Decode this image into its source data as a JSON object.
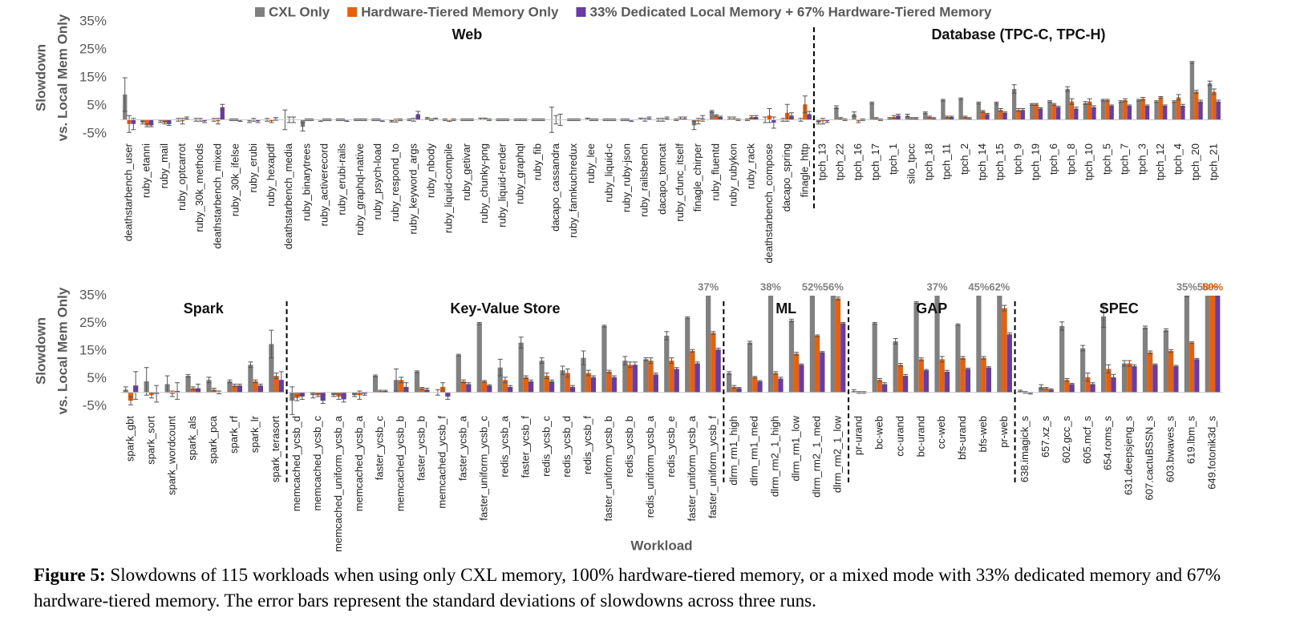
{
  "chart_data": [
    {
      "type": "bar",
      "ylabel": [
        "Slowdown",
        "vs. Local Mem Only"
      ],
      "ylim": [
        -5,
        35
      ],
      "yticks": [
        {
          "value": -5,
          "label": "-5%"
        },
        {
          "value": 5,
          "label": "5%"
        },
        {
          "value": 15,
          "label": "15%"
        },
        {
          "value": 25,
          "label": "25%"
        },
        {
          "value": 35,
          "label": "35%"
        }
      ],
      "groups": [
        {
          "name": "Web",
          "categories": [
            "deathstarbench_user",
            "ruby_etanni",
            "ruby_mail",
            "ruby_optcarrot",
            "ruby_30k_methods",
            "deathstarbench_mixed",
            "ruby_30k_ifelse",
            "ruby_erubi",
            "ruby_hexapdf",
            "deathstarbench_media",
            "ruby_binarytrees",
            "ruby_activerecord",
            "ruby_erubi-rails",
            "ruby_graphql-native",
            "ruby_psych-load",
            "ruby_respond_to",
            "ruby_keyword_args",
            "ruby_nbody",
            "ruby_liquid-compile",
            "ruby_getivar",
            "ruby_chunky-png",
            "ruby_liquid-render",
            "ruby_graphql",
            "ruby_fib",
            "dacapo_cassandra",
            "ruby_fannkuchredux",
            "ruby_lee",
            "ruby_liquid-c",
            "ruby_ruby-json",
            "ruby_railsbench",
            "dacapo_tomcat",
            "ruby_cfunc_itself",
            "finagle_chirper",
            "ruby_fluentd",
            "ruby_rubykon",
            "ruby_rack",
            "deathstarbench_compose",
            "dacapo_spring",
            "finagle_http"
          ]
        },
        {
          "name": "Database (TPC-C, TPC-H)",
          "categories": [
            "tpch_13",
            "tpch_22",
            "tpch_16",
            "tpch_17",
            "tpch_1",
            "silo_tpcc",
            "tpch_18",
            "tpch_11",
            "tpch_2",
            "tpch_14",
            "tpch_15",
            "tpch_9",
            "tpch_19",
            "tpch_6",
            "tpch_8",
            "tpch_10",
            "tpch_5",
            "tpch_7",
            "tpch_3",
            "tpch_12",
            "tpch_4",
            "tpch_20",
            "tpch_21"
          ]
        }
      ],
      "series": [
        {
          "name": "CXL Only",
          "color": "#808080",
          "values": [
            9,
            -1,
            -0.5,
            0,
            0,
            0,
            0,
            -0.5,
            0,
            0,
            -2.5,
            -0.3,
            0,
            0,
            0,
            -0.5,
            0,
            0.5,
            0,
            0,
            0.3,
            0,
            0,
            0,
            0,
            0,
            0.3,
            0,
            0,
            0.3,
            0,
            0,
            -2,
            3,
            0.5,
            0,
            0,
            0,
            0,
            -1,
            4.5,
            2,
            6,
            0.5,
            1.5,
            2.5,
            7,
            7.5,
            6,
            6,
            11,
            5.5,
            6.5,
            11,
            6,
            7,
            6.5,
            7,
            6.5,
            6.5,
            20.5,
            13
          ],
          "errors": [
            6,
            0.5,
            0.5,
            0.5,
            0.5,
            0.5,
            0.3,
            0.5,
            0.5,
            3.5,
            1.5,
            0.3,
            0.3,
            0.3,
            0.3,
            0.3,
            0.3,
            0.3,
            0.3,
            0.3,
            0.3,
            0.3,
            0.3,
            0.3,
            4.5,
            0.3,
            0.3,
            0.3,
            0.3,
            0.3,
            0.5,
            0.3,
            1.5,
            0.3,
            0.5,
            0.3,
            1,
            0.5,
            0.5,
            0.5,
            0.5,
            0.8,
            0.3,
            0.3,
            0.5,
            0.3,
            0.3,
            0.3,
            0.3,
            0.3,
            1.5,
            0.3,
            0.3,
            0.8,
            0.5,
            0.3,
            0.3,
            0.3,
            0.3,
            0.3,
            0.3,
            0.8
          ]
        },
        {
          "name": "Hardware-Tiered Memory Only",
          "color": "#e8600a",
          "values": [
            -1.5,
            -2,
            -1,
            -0.5,
            0,
            -0.5,
            0,
            0,
            -0.5,
            0,
            0,
            0,
            0,
            0,
            0,
            -0.3,
            0,
            0,
            -0.3,
            0,
            0.3,
            0,
            0,
            0,
            0,
            0,
            0,
            0,
            0,
            0,
            0,
            0.5,
            -0.5,
            1.5,
            0.5,
            1,
            1.5,
            2.5,
            5.5,
            -0.5,
            0.5,
            -0.5,
            0.5,
            1,
            0.5,
            1,
            1,
            1,
            3,
            3.5,
            3.5,
            5.5,
            5.5,
            6.5,
            6.5,
            7,
            7,
            7.5,
            8,
            8,
            10,
            10
          ],
          "errors": [
            3,
            0.5,
            0.5,
            1,
            0.5,
            1,
            0.3,
            0.5,
            0.5,
            1,
            0.3,
            0.3,
            0.3,
            0.3,
            0.3,
            0.5,
            0.5,
            0.3,
            0.3,
            0.3,
            0.3,
            0.3,
            0.3,
            0.3,
            1.5,
            0.3,
            0.3,
            0.3,
            0.3,
            0.5,
            0.5,
            0.5,
            1,
            0.3,
            0.5,
            0.5,
            2.5,
            3,
            3,
            1,
            0.3,
            0.5,
            0.3,
            0.5,
            0.3,
            0.3,
            0.3,
            0.3,
            0.3,
            0.5,
            0.5,
            0.3,
            0.3,
            1,
            1,
            0.3,
            0.5,
            0.5,
            0.3,
            1,
            0.5,
            1
          ]
        },
        {
          "name": "33% Dedicated Local Memory + 67% Hardware-Tiered Memory",
          "color": "#6a3ba3",
          "values": [
            -1.5,
            -2,
            -1.5,
            0.5,
            -0.5,
            4.5,
            -0.3,
            -0.5,
            0.3,
            0,
            0,
            0,
            -0.3,
            0,
            -0.3,
            0,
            2,
            0.3,
            0,
            0,
            0,
            0,
            0,
            0,
            0,
            0,
            0,
            0,
            -0.3,
            0.5,
            0.5,
            0.5,
            0.5,
            1,
            0,
            1,
            -1,
            1.5,
            2,
            -0.5,
            0,
            0,
            0,
            1.5,
            0.5,
            0.5,
            1,
            0.5,
            2,
            2.5,
            3.5,
            4,
            4.5,
            4,
            4.5,
            5,
            5,
            5,
            5,
            5,
            6.5,
            6.5
          ],
          "errors": [
            2,
            0.5,
            0.5,
            0.5,
            0.5,
            1,
            0.3,
            0.5,
            0.5,
            1,
            0.3,
            0.3,
            0.3,
            0.3,
            0.3,
            0.3,
            1,
            0.3,
            0.3,
            0.3,
            0.3,
            0.3,
            0.3,
            0.3,
            2,
            0.3,
            0.3,
            0.3,
            0.3,
            0.5,
            0.5,
            0.5,
            1,
            0.3,
            0.3,
            0.5,
            2,
            1,
            1,
            0.5,
            0.3,
            0.3,
            0.3,
            0.5,
            0.3,
            0.3,
            0.3,
            0.3,
            0.3,
            0.3,
            0.5,
            0.3,
            0.3,
            0.5,
            0.5,
            0.3,
            0.3,
            0.3,
            0.3,
            0.5,
            0.5,
            0.5
          ]
        }
      ]
    },
    {
      "type": "bar",
      "ylabel": [
        "Slowdown",
        "vs. Local Mem Only"
      ],
      "xlabel": "Workload",
      "ylim": [
        -5,
        35
      ],
      "yticks": [
        {
          "value": -5,
          "label": "-5%"
        },
        {
          "value": 5,
          "label": "5%"
        },
        {
          "value": 15,
          "label": "15%"
        },
        {
          "value": 25,
          "label": "25%"
        },
        {
          "value": 35,
          "label": "35%"
        }
      ],
      "groups": [
        {
          "name": "Spark",
          "categories": [
            "spark_gbt",
            "spark_sort",
            "spark_wordcount",
            "spark_als",
            "spark_pca",
            "spark_rf",
            "spark_lr",
            "spark_terasort"
          ]
        },
        {
          "name": "Key-Value Store",
          "categories": [
            "memcached_ycsb_d",
            "memcached_ycsb_c",
            "memcached_uniform_ycsb_a",
            "memcached_ycsb_a",
            "faster_ycsb_c",
            "memcached_ycsb_b",
            "faster_ycsb_b",
            "memcached_ycsb_f",
            "faster_ycsb_a",
            "faster_uniform_ycsb_c",
            "redis_ycsb_a",
            "faster_ycsb_f",
            "redis_ycsb_c",
            "redis_ycsb_d",
            "redis_ycsb_f",
            "faster_uniform_ycsb_b",
            "redis_ycsb_b",
            "redis_uniform_ycsb_a",
            "redis_ycsb_e",
            "faster_uniform_ycsb_a",
            "faster_uniform_ycsb_f"
          ]
        },
        {
          "name": "ML",
          "categories": [
            "dlrm_rm1_high",
            "dlrm_rm1_med",
            "dlrm_rm2_1_high",
            "dlrm_rm1_low",
            "dlrm_rm2_1_med",
            "dlrm_rm2_1_low"
          ]
        },
        {
          "name": "GAP",
          "categories": [
            "pr-urand",
            "bc-web",
            "cc-urand",
            "bc-urand",
            "cc-web",
            "bfs-urand",
            "bfs-web",
            "pr-web"
          ]
        },
        {
          "name": "SPEC",
          "categories": [
            "638.imagick_s",
            "657.xz_s",
            "602.gcc_s",
            "605.mcf_s",
            "654.roms_s",
            "631.deepsjeng_s",
            "607.cactuBSSN_s",
            "603.bwaves_s",
            "619.lbm_s",
            "649.fotonik3d_s"
          ]
        }
      ],
      "series": [
        {
          "color": "#808080",
          "values": [
            1,
            4,
            3,
            6,
            4.5,
            4,
            10,
            17.5,
            -3,
            -1,
            -1,
            -1,
            6,
            4.5,
            7.5,
            0,
            13.5,
            25,
            9,
            18,
            11.5,
            8,
            12.5,
            24,
            11.5,
            12,
            20.5,
            27,
            37,
            7,
            18,
            38,
            26,
            52,
            56,
            0.5,
            25,
            18.5,
            32.5,
            37,
            24.5,
            45,
            62,
            0.5,
            2,
            24,
            16,
            27.5,
            10.5,
            23.5,
            22.5,
            35,
            58
          ],
          "value_labels": [
            null,
            null,
            null,
            null,
            null,
            null,
            null,
            null,
            null,
            null,
            null,
            null,
            null,
            null,
            null,
            null,
            null,
            null,
            null,
            null,
            null,
            null,
            null,
            null,
            null,
            null,
            null,
            null,
            "37%",
            null,
            null,
            "38%",
            null,
            "52%",
            "56%",
            null,
            null,
            null,
            null,
            "37%",
            null,
            "45%",
            "62%",
            null,
            null,
            null,
            null,
            null,
            null,
            null,
            null,
            "35%",
            "58%"
          ],
          "errors": [
            1,
            5,
            3,
            0.5,
            1,
            0.5,
            1,
            5,
            5,
            1,
            0.5,
            0.5,
            0.3,
            4,
            0.3,
            1,
            0.3,
            0.3,
            3,
            2,
            1,
            1.5,
            2.5,
            0.3,
            1.5,
            0.5,
            1.5,
            0.3,
            0.3,
            0.5,
            0.5,
            0.3,
            0.5,
            0.3,
            0.3,
            0.5,
            0.3,
            1,
            0.3,
            0.3,
            0.3,
            0.3,
            0.3,
            0.3,
            0.8,
            1.5,
            1,
            4,
            1,
            0.5,
            0.5,
            0.3,
            0.3
          ]
        },
        {
          "color": "#e8600a",
          "values": [
            -3,
            -1,
            -0.5,
            1.5,
            1,
            2.5,
            4,
            6,
            -2,
            -1,
            -1.5,
            -1,
            0.5,
            4.5,
            1.5,
            2,
            4,
            4,
            4.5,
            5.5,
            6,
            7,
            7,
            7.5,
            10,
            11.5,
            11.5,
            15,
            21.5,
            2,
            5.5,
            7,
            14,
            20.5,
            34,
            0,
            4.5,
            10,
            12,
            12,
            12.5,
            12.5,
            30.5,
            0,
            1.5,
            4.5,
            5.5,
            8.5,
            10.5,
            14.5,
            15,
            18,
            50
          ],
          "value_labels": [
            null,
            null,
            null,
            null,
            null,
            null,
            null,
            null,
            null,
            null,
            null,
            null,
            null,
            null,
            null,
            null,
            null,
            null,
            null,
            null,
            null,
            null,
            null,
            null,
            null,
            null,
            null,
            null,
            null,
            null,
            null,
            null,
            null,
            null,
            null,
            null,
            null,
            null,
            null,
            null,
            null,
            null,
            null,
            null,
            null,
            null,
            null,
            null,
            null,
            null,
            null,
            null,
            "50%"
          ],
          "errors": [
            1.5,
            1,
            1,
            0.5,
            0.5,
            0.5,
            0.5,
            1,
            1,
            0.5,
            1,
            1.5,
            0.3,
            1,
            0.3,
            1.5,
            0.5,
            0.3,
            1,
            0.5,
            1,
            1.5,
            1,
            0.5,
            1,
            1,
            1,
            0.5,
            0.5,
            0.5,
            0.3,
            0.5,
            0.5,
            0.3,
            0.5,
            0.3,
            0.5,
            0.5,
            0.5,
            1,
            0.5,
            0.5,
            1,
            0.3,
            0.3,
            0.5,
            1.5,
            1.5,
            1,
            0.5,
            0.5,
            0.3,
            0.3
          ]
        },
        {
          "color": "#6a3ba3",
          "values": [
            2.5,
            -0.5,
            0.5,
            1.5,
            0,
            2.5,
            2.5,
            4.5,
            -1.5,
            -3,
            -2.5,
            -0.5,
            0.5,
            2,
            1,
            -1.5,
            3,
            2.5,
            2,
            4,
            4,
            2,
            5.5,
            5.5,
            10,
            6.5,
            8.5,
            10.5,
            15.5,
            1.5,
            4,
            5,
            10,
            14.5,
            25,
            0,
            3,
            6,
            8,
            7.5,
            8.5,
            9,
            21,
            -0.3,
            1,
            3,
            3,
            5.5,
            9.5,
            10,
            9.5,
            12,
            35
          ],
          "errors": [
            5,
            3,
            3,
            1.5,
            0.5,
            0.5,
            0.5,
            3,
            1,
            1,
            1,
            0.5,
            0.3,
            1.5,
            0.5,
            1,
            0.5,
            0.3,
            0.5,
            0.5,
            0.5,
            0.5,
            0.5,
            0.5,
            1,
            0.5,
            0.5,
            0.5,
            0.5,
            0.3,
            0.3,
            0.5,
            0.3,
            0.3,
            0.3,
            0.3,
            0.5,
            0.5,
            0.3,
            0.5,
            0.3,
            0.3,
            0.5,
            0.3,
            0.3,
            0.3,
            0.5,
            1,
            0.5,
            0.3,
            0.3,
            0.3,
            0.3
          ]
        }
      ]
    }
  ],
  "caption": {
    "label": "Figure 5:",
    "text": "Slowdowns of 115 workloads when using only CXL memory, 100% hardware-tiered memory, or a mixed mode with 33% dedicated memory and 67% hardware-tiered memory. The error bars represent the standard deviations of slowdowns across three runs."
  }
}
